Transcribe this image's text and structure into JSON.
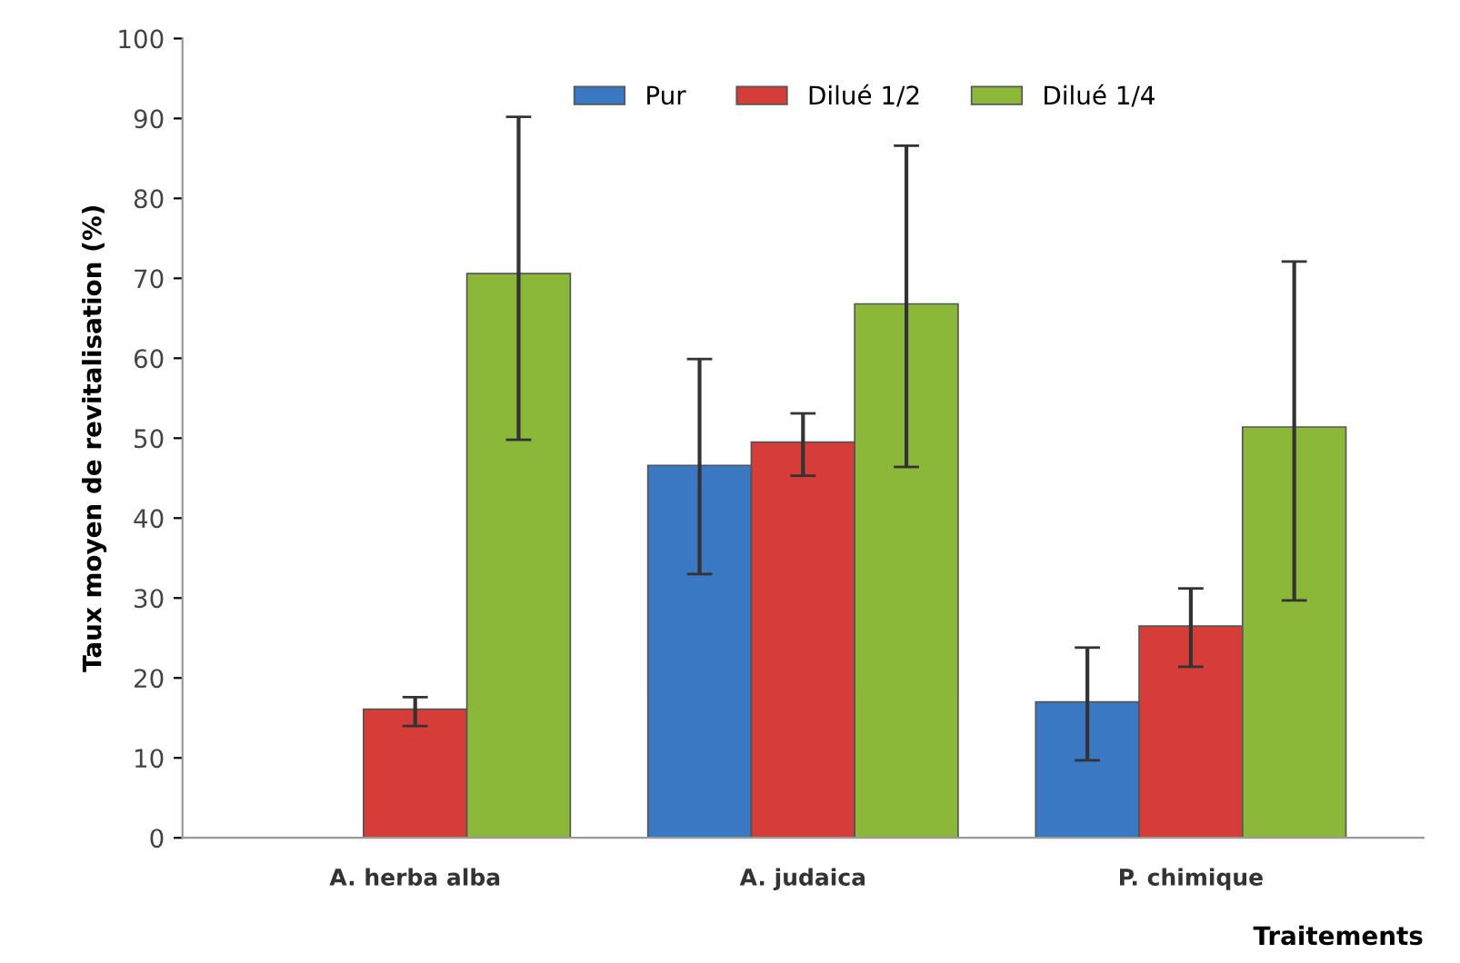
{
  "chart_data": {
    "type": "bar",
    "categories": [
      "A. herba alba",
      "A. judaica",
      "P. chimique"
    ],
    "xlabel": "Traitements",
    "ylabel": "Taux moyen de revitalisation (%)",
    "ylim": [
      0,
      100
    ],
    "yticks": [
      0,
      10,
      20,
      30,
      40,
      50,
      60,
      70,
      80,
      90,
      100
    ],
    "grid": false,
    "legend": "top",
    "series": [
      {
        "name": "Pur",
        "color": "#3a78c4",
        "values": [
          null,
          46.6,
          17.0
        ],
        "errors": [
          null,
          [
            33.0,
            59.9
          ],
          [
            9.7,
            23.8
          ]
        ]
      },
      {
        "name": "Dilué 1/2",
        "color": "#d63c38",
        "values": [
          16.1,
          49.5,
          26.5
        ],
        "errors": [
          [
            14.0,
            17.6
          ],
          [
            45.3,
            53.1
          ],
          [
            21.4,
            31.2
          ]
        ]
      },
      {
        "name": "Dilué 1/4",
        "color": "#8cb83a",
        "values": [
          70.6,
          66.8,
          51.4
        ],
        "errors": [
          [
            49.8,
            90.2
          ],
          [
            46.4,
            86.6
          ],
          [
            29.7,
            72.1
          ]
        ]
      }
    ]
  }
}
